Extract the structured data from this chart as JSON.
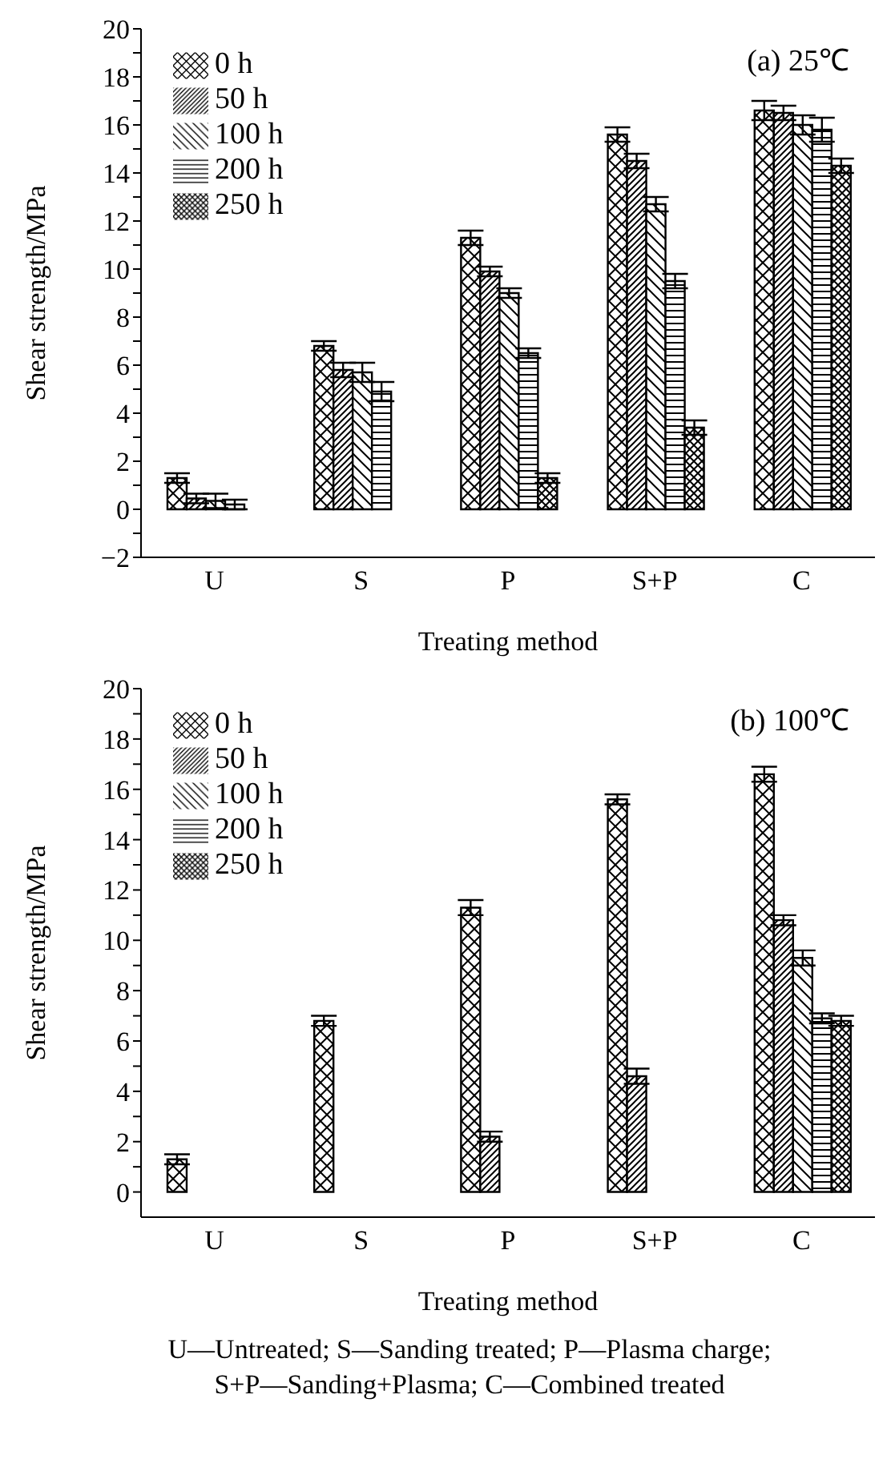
{
  "chart_data": [
    {
      "type": "bar",
      "title": "(a) 25℃",
      "xlabel": "Treating method",
      "ylabel": "Shear strength/MPa",
      "categories": [
        "U",
        "S",
        "P",
        "S+P",
        "C"
      ],
      "series": [
        {
          "name": "0 h",
          "color": "#000000",
          "values": [
            1.3,
            6.8,
            11.3,
            15.6,
            16.6
          ],
          "errors": [
            0.2,
            0.2,
            0.3,
            0.3,
            0.4
          ]
        },
        {
          "name": "50 h",
          "color": "#000000",
          "values": [
            0.45,
            5.8,
            9.9,
            14.5,
            16.5
          ],
          "errors": [
            0.2,
            0.3,
            0.2,
            0.3,
            0.3
          ]
        },
        {
          "name": "100 h",
          "color": "#000000",
          "values": [
            0.35,
            5.7,
            9.0,
            12.7,
            16.0
          ],
          "errors": [
            0.3,
            0.4,
            0.2,
            0.3,
            0.4
          ]
        },
        {
          "name": "200 h",
          "color": "#000000",
          "values": [
            0.2,
            4.9,
            6.5,
            9.5,
            15.8
          ],
          "errors": [
            0.2,
            0.4,
            0.2,
            0.3,
            0.5
          ]
        },
        {
          "name": "250 h",
          "color": "#000000",
          "values": [
            0,
            0,
            1.3,
            3.4,
            14.3
          ],
          "errors": [
            null,
            null,
            0.2,
            0.3,
            0.3
          ]
        }
      ],
      "ylim": [
        -2,
        20
      ],
      "yticks": [
        {
          "value": -2,
          "label": "−2"
        },
        {
          "value": -1,
          "label": null
        },
        0,
        {
          "value": 1,
          "label": null
        },
        2,
        {
          "value": 3,
          "label": null
        },
        4,
        {
          "value": 5,
          "label": null
        },
        6,
        {
          "value": 7,
          "label": null
        },
        8,
        {
          "value": 9,
          "label": null
        },
        10,
        {
          "value": 11,
          "label": null
        },
        12,
        {
          "value": 13,
          "label": null
        },
        14,
        {
          "value": 15,
          "label": null
        },
        16,
        {
          "value": 17,
          "label": null
        },
        18,
        {
          "value": 19,
          "label": null
        },
        20
      ],
      "legend": "top left",
      "grid": false
    },
    {
      "type": "bar",
      "title": "(b) 100℃",
      "xlabel": "Treating method",
      "ylabel": "Shear strength/MPa",
      "categories": [
        "U",
        "S",
        "P",
        "S+P",
        "C"
      ],
      "series": [
        {
          "name": "0 h",
          "color": "#000000",
          "values": [
            1.3,
            6.8,
            11.3,
            15.6,
            16.6
          ],
          "errors": [
            0.2,
            0.2,
            0.3,
            0.2,
            0.3
          ]
        },
        {
          "name": "50 h",
          "color": "#000000",
          "values": [
            0,
            0,
            2.2,
            4.6,
            10.8
          ],
          "errors": [
            null,
            null,
            0.2,
            0.3,
            0.2
          ]
        },
        {
          "name": "100 h",
          "color": "#000000",
          "values": [
            0,
            0,
            0,
            0,
            9.3
          ],
          "errors": [
            null,
            null,
            null,
            null,
            0.3
          ]
        },
        {
          "name": "200 h",
          "color": "#000000",
          "values": [
            0,
            0,
            0,
            0,
            6.9
          ],
          "errors": [
            null,
            null,
            null,
            null,
            0.2
          ]
        },
        {
          "name": "250 h",
          "color": "#000000",
          "values": [
            0,
            0,
            0,
            0,
            6.8
          ],
          "errors": [
            null,
            null,
            null,
            null,
            0.2
          ]
        }
      ],
      "ylim": [
        -1,
        20
      ],
      "yticks": [
        0,
        {
          "value": 1,
          "label": null
        },
        2,
        {
          "value": 3,
          "label": null
        },
        4,
        {
          "value": 5,
          "label": null
        },
        6,
        {
          "value": 7,
          "label": null
        },
        8,
        {
          "value": 9,
          "label": null
        },
        10,
        {
          "value": 11,
          "label": null
        },
        12,
        {
          "value": 13,
          "label": null
        },
        14,
        {
          "value": 15,
          "label": null
        },
        16,
        {
          "value": 17,
          "label": null
        },
        18,
        {
          "value": 19,
          "label": null
        },
        20
      ],
      "legend": "top left",
      "grid": false,
      "annotations": [
        "U—Untreated; S—Sanding treated; P—Plasma charge;",
        "S+P—Sanding+Plasma; C—Combined treated"
      ]
    }
  ]
}
